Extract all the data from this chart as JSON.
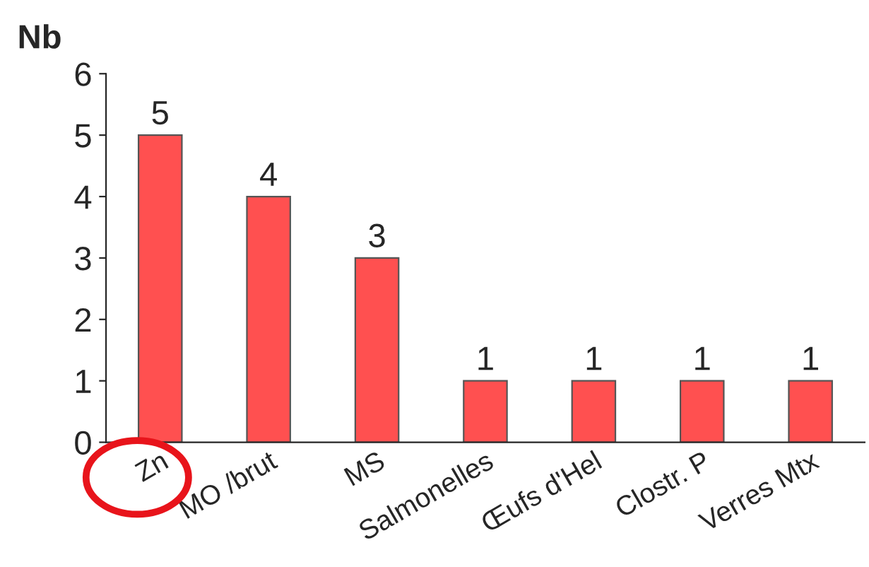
{
  "chart_data": {
    "type": "bar",
    "ylabel": "Nb",
    "categories": [
      "Zn",
      "MO /brut",
      "MS",
      "Salmonelles",
      "Œufs d'Hel",
      "Clostr. P",
      "Verres Mtx"
    ],
    "values": [
      5,
      4,
      3,
      1,
      1,
      1,
      1
    ],
    "color": "#ff5050",
    "ylim": [
      0,
      6
    ],
    "yticks": [
      0,
      1,
      2,
      3,
      4,
      5,
      6
    ],
    "data_labels": true,
    "grid": false,
    "legend": false
  }
}
